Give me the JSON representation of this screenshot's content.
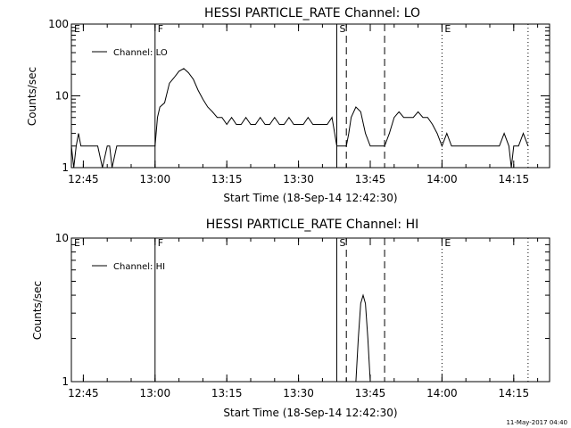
{
  "chart_data": [
    {
      "type": "line",
      "title": "HESSI PARTICLE_RATE Channel: LO",
      "xlabel": "Start Time (18-Sep-14 12:42:30)",
      "ylabel": "Counts/sec",
      "y_scale": "log",
      "ylim": [
        1,
        100
      ],
      "y_ticks": [
        "1",
        "10",
        "100"
      ],
      "xlim": [
        "12:42:30",
        "14:22:30"
      ],
      "x_ticks": [
        "12:45",
        "13:00",
        "13:15",
        "13:30",
        "13:45",
        "14:00",
        "14:15"
      ],
      "legend": {
        "placement": "top-left",
        "entries": [
          "Channel: LO"
        ]
      },
      "grid": false,
      "markers": [
        {
          "label": "E",
          "time": "12:42:30",
          "style": "none"
        },
        {
          "label": "F",
          "time": "13:00:00",
          "style": "solid"
        },
        {
          "label": "S",
          "time": "13:38:00",
          "style": "solid"
        },
        {
          "label": "",
          "time": "13:40:00",
          "style": "dashed"
        },
        {
          "label": "",
          "time": "13:48:00",
          "style": "dashed"
        },
        {
          "label": "E",
          "time": "14:00:00",
          "style": "dotted"
        },
        {
          "label": "",
          "time": "14:18:00",
          "style": "dotted"
        }
      ],
      "series": [
        {
          "name": "Channel: LO",
          "x": [
            "12:42:30",
            "12:43:00",
            "12:43:30",
            "12:44:00",
            "12:44:30",
            "12:45:00",
            "12:46:00",
            "12:47:00",
            "12:48:00",
            "12:49:00",
            "12:50:00",
            "12:50:30",
            "12:51:00",
            "12:52:00",
            "12:54:00",
            "12:56:00",
            "12:58:00",
            "13:00:00",
            "13:00:30",
            "13:01:00",
            "13:02:00",
            "13:03:00",
            "13:04:00",
            "13:05:00",
            "13:06:00",
            "13:07:00",
            "13:08:00",
            "13:09:00",
            "13:10:00",
            "13:11:00",
            "13:12:00",
            "13:13:00",
            "13:14:00",
            "13:15:00",
            "13:16:00",
            "13:17:00",
            "13:18:00",
            "13:19:00",
            "13:20:00",
            "13:21:00",
            "13:22:00",
            "13:23:00",
            "13:24:00",
            "13:25:00",
            "13:26:00",
            "13:27:00",
            "13:28:00",
            "13:29:00",
            "13:30:00",
            "13:31:00",
            "13:32:00",
            "13:33:00",
            "13:34:00",
            "13:35:00",
            "13:36:00",
            "13:37:00",
            "13:38:00",
            "13:39:00",
            "13:40:00",
            "13:40:30",
            "13:41:00",
            "13:42:00",
            "13:43:00",
            "13:44:00",
            "13:45:00",
            "13:46:00",
            "13:47:00",
            "13:48:00",
            "13:49:00",
            "13:50:00",
            "13:51:00",
            "13:52:00",
            "13:53:00",
            "13:54:00",
            "13:55:00",
            "13:56:00",
            "13:57:00",
            "13:58:00",
            "13:59:00",
            "14:00:00",
            "14:01:00",
            "14:02:00",
            "14:03:00",
            "14:04:00",
            "14:05:00",
            "14:06:00",
            "14:08:00",
            "14:10:00",
            "14:12:00",
            "14:13:00",
            "14:14:00",
            "14:14:30",
            "14:15:00",
            "14:16:00",
            "14:17:00",
            "14:18:00"
          ],
          "values": [
            2,
            1,
            2,
            3,
            2,
            2,
            2,
            2,
            2,
            1,
            2,
            2,
            1,
            2,
            2,
            2,
            2,
            2,
            5,
            7,
            8,
            15,
            18,
            22,
            24,
            21,
            17,
            12,
            9,
            7,
            6,
            5,
            5,
            4,
            5,
            4,
            4,
            5,
            4,
            4,
            5,
            4,
            4,
            5,
            4,
            4,
            5,
            4,
            4,
            4,
            5,
            4,
            4,
            4,
            4,
            5,
            2,
            2,
            2,
            3,
            5,
            7,
            6,
            3,
            2,
            2,
            2,
            2,
            3,
            5,
            6,
            5,
            5,
            5,
            6,
            5,
            5,
            4,
            3,
            2,
            3,
            2,
            2,
            2,
            2,
            2,
            2,
            2,
            2,
            3,
            2,
            1,
            2,
            2,
            3,
            2
          ]
        }
      ]
    },
    {
      "type": "line",
      "title": "HESSI PARTICLE_RATE Channel: HI",
      "xlabel": "Start Time (18-Sep-14 12:42:30)",
      "ylabel": "Counts/sec",
      "y_scale": "log",
      "ylim": [
        1,
        10
      ],
      "y_ticks": [
        "1",
        "10"
      ],
      "xlim": [
        "12:42:30",
        "14:22:30"
      ],
      "x_ticks": [
        "12:45",
        "13:00",
        "13:15",
        "13:30",
        "13:45",
        "14:00",
        "14:15"
      ],
      "legend": {
        "placement": "top-left",
        "entries": [
          "Channel: HI"
        ]
      },
      "grid": false,
      "markers": [
        {
          "label": "E",
          "time": "12:42:30",
          "style": "none"
        },
        {
          "label": "F",
          "time": "13:00:00",
          "style": "solid"
        },
        {
          "label": "S",
          "time": "13:38:00",
          "style": "solid"
        },
        {
          "label": "",
          "time": "13:40:00",
          "style": "dashed"
        },
        {
          "label": "",
          "time": "13:48:00",
          "style": "dashed"
        },
        {
          "label": "E",
          "time": "14:00:00",
          "style": "dotted"
        },
        {
          "label": "",
          "time": "14:18:00",
          "style": "dotted"
        }
      ],
      "series": [
        {
          "name": "Channel: HI",
          "x": [
            "13:42:00",
            "13:42:30",
            "13:43:00",
            "13:43:30",
            "13:44:00",
            "13:44:30",
            "13:45:00"
          ],
          "values": [
            1,
            2,
            3.5,
            4,
            3.5,
            2,
            1
          ]
        }
      ]
    }
  ],
  "timestamp": "11-May-2017 04:40"
}
